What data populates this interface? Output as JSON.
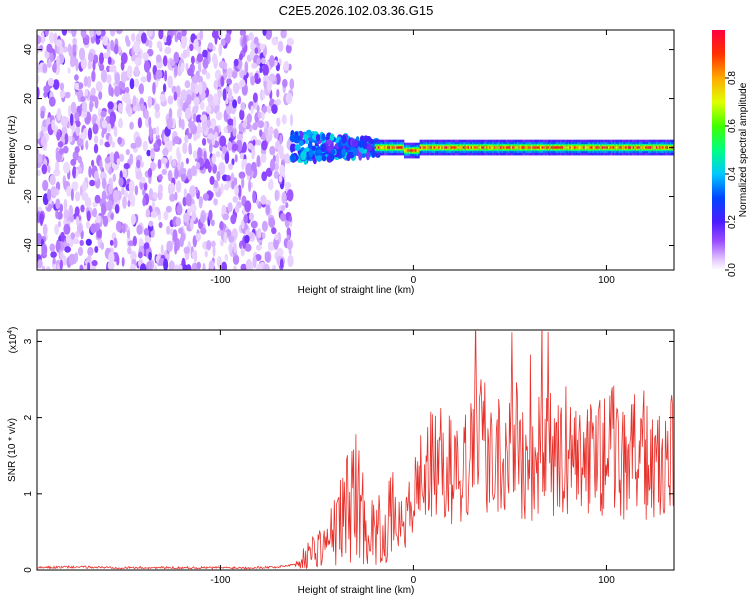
{
  "title": "C2E5.2026.102.03.36.G15",
  "chart_data": [
    {
      "type": "heatmap",
      "name": "spectrogram",
      "xlabel": "Height of straight line (km)",
      "ylabel": "Frequency (Hz)",
      "xlim": [
        -195,
        135
      ],
      "ylim": [
        -50,
        48
      ],
      "xticks": [
        -100,
        0,
        100
      ],
      "yticks": [
        -40,
        -20,
        0,
        20,
        40
      ],
      "colorbar": {
        "label": "Normalized spectral amplitude",
        "range": [
          0,
          1
        ],
        "ticks": [
          0.0,
          0.2,
          0.4,
          0.6,
          0.8
        ]
      },
      "regions": [
        {
          "x_range": [
            -195,
            -63
          ],
          "frequency_range": [
            -50,
            48
          ],
          "amplitude": "0.05-0.15",
          "pattern": "scattered noise"
        },
        {
          "x_range": [
            -63,
            -20
          ],
          "frequency_center": 0,
          "frequency_halfwidth": 7,
          "amplitude": "0.15-0.45"
        },
        {
          "x_range": [
            -20,
            135
          ],
          "frequency_center": 0,
          "frequency_halfwidth": 2,
          "amplitude": "0.3-1.0"
        }
      ]
    },
    {
      "type": "line",
      "name": "snr",
      "xlabel": "Height of straight line (km)",
      "ylabel": "SNR (10 * v/v)",
      "y_multiplier": "(x10^4)",
      "xlim": [
        -195,
        135
      ],
      "ylim": [
        0,
        3.15
      ],
      "xticks": [
        -100,
        0,
        100
      ],
      "yticks": [
        0,
        1,
        2,
        3
      ],
      "line_color": "#e8302a",
      "series": [
        {
          "x": [
            -195,
            -175,
            -150,
            -125,
            -100,
            -85,
            -70,
            -60,
            -55,
            -50,
            -45,
            -40,
            -35,
            -30,
            -25,
            -20,
            -15,
            -10,
            -5,
            0,
            5,
            10,
            15,
            20,
            25,
            30,
            35,
            40,
            45,
            50,
            55,
            60,
            65,
            70,
            75,
            80,
            85,
            90,
            95,
            100,
            105,
            110,
            115,
            120,
            125,
            130,
            135
          ],
          "y": [
            0.03,
            0.04,
            0.03,
            0.03,
            0.03,
            0.03,
            0.04,
            0.08,
            0.2,
            0.3,
            0.35,
            0.55,
            0.8,
            1.05,
            0.6,
            0.5,
            0.55,
            0.7,
            0.55,
            0.95,
            1.3,
            1.35,
            1.4,
            1.3,
            1.25,
            1.5,
            1.7,
            1.6,
            1.5,
            1.8,
            1.5,
            1.3,
            1.6,
            1.55,
            1.4,
            1.6,
            1.5,
            1.4,
            1.55,
            1.5,
            1.65,
            1.4,
            1.5,
            1.45,
            1.3,
            1.35,
            1.55
          ]
        }
      ]
    }
  ]
}
